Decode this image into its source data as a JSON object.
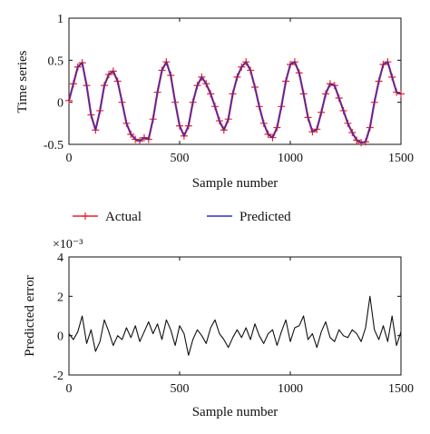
{
  "chart_data": [
    {
      "type": "line",
      "xlabel": "Sample number",
      "ylabel": "Time series",
      "xlim": [
        0,
        1500
      ],
      "ylim": [
        -0.5,
        1
      ],
      "xticks": [
        "0",
        "500",
        "1000",
        "1500"
      ],
      "yticks": [
        "-0.5",
        "0",
        "0.5",
        "1"
      ],
      "grid": false,
      "legend": {
        "placement": "below-plot",
        "entries": [
          "Actual",
          "Predicted"
        ]
      },
      "series": [
        {
          "name": "Actual",
          "color": "#e8222a",
          "marker": "plus",
          "x": [
            0,
            20,
            40,
            60,
            80,
            100,
            120,
            140,
            160,
            180,
            200,
            220,
            240,
            260,
            280,
            300,
            320,
            340,
            360,
            380,
            400,
            420,
            440,
            460,
            480,
            500,
            520,
            540,
            560,
            580,
            600,
            620,
            640,
            660,
            680,
            700,
            720,
            740,
            760,
            780,
            800,
            820,
            840,
            860,
            880,
            900,
            920,
            940,
            960,
            980,
            1000,
            1020,
            1040,
            1060,
            1080,
            1100,
            1120,
            1140,
            1160,
            1180,
            1200,
            1220,
            1240,
            1260,
            1280,
            1300,
            1320,
            1340,
            1360,
            1380,
            1400,
            1420,
            1440,
            1460,
            1480,
            1500
          ],
          "values": [
            0.02,
            0.22,
            0.42,
            0.47,
            0.2,
            -0.15,
            -0.33,
            -0.1,
            0.2,
            0.33,
            0.37,
            0.25,
            0.0,
            -0.25,
            -0.38,
            -0.44,
            -0.46,
            -0.42,
            -0.44,
            -0.2,
            0.12,
            0.38,
            0.48,
            0.32,
            0.0,
            -0.28,
            -0.4,
            -0.28,
            0.0,
            0.2,
            0.3,
            0.22,
            0.1,
            -0.05,
            -0.22,
            -0.33,
            -0.2,
            0.1,
            0.3,
            0.42,
            0.48,
            0.38,
            0.18,
            -0.05,
            -0.25,
            -0.38,
            -0.42,
            -0.3,
            -0.05,
            0.25,
            0.45,
            0.48,
            0.35,
            0.1,
            -0.18,
            -0.35,
            -0.32,
            -0.12,
            0.1,
            0.22,
            0.2,
            0.05,
            -0.1,
            -0.25,
            -0.36,
            -0.45,
            -0.48,
            -0.47,
            -0.3,
            0.0,
            0.25,
            0.45,
            0.48,
            0.3,
            0.12,
            0.1
          ]
        },
        {
          "name": "Predicted",
          "color": "#3030c0",
          "marker": "none",
          "x": [
            0,
            20,
            40,
            60,
            80,
            100,
            120,
            140,
            160,
            180,
            200,
            220,
            240,
            260,
            280,
            300,
            320,
            340,
            360,
            380,
            400,
            420,
            440,
            460,
            480,
            500,
            520,
            540,
            560,
            580,
            600,
            620,
            640,
            660,
            680,
            700,
            720,
            740,
            760,
            780,
            800,
            820,
            840,
            860,
            880,
            900,
            920,
            940,
            960,
            980,
            1000,
            1020,
            1040,
            1060,
            1080,
            1100,
            1120,
            1140,
            1160,
            1180,
            1200,
            1220,
            1240,
            1260,
            1280,
            1300,
            1320,
            1340,
            1360,
            1380,
            1400,
            1420,
            1440,
            1460,
            1480,
            1500
          ],
          "values": [
            0.02,
            0.22,
            0.42,
            0.47,
            0.2,
            -0.15,
            -0.33,
            -0.1,
            0.2,
            0.33,
            0.37,
            0.25,
            0.0,
            -0.25,
            -0.38,
            -0.44,
            -0.46,
            -0.42,
            -0.44,
            -0.2,
            0.12,
            0.38,
            0.48,
            0.32,
            0.0,
            -0.28,
            -0.4,
            -0.28,
            0.0,
            0.2,
            0.3,
            0.22,
            0.1,
            -0.05,
            -0.22,
            -0.33,
            -0.2,
            0.1,
            0.3,
            0.42,
            0.48,
            0.38,
            0.18,
            -0.05,
            -0.25,
            -0.38,
            -0.42,
            -0.3,
            -0.05,
            0.25,
            0.45,
            0.48,
            0.35,
            0.1,
            -0.18,
            -0.35,
            -0.32,
            -0.12,
            0.1,
            0.22,
            0.2,
            0.05,
            -0.1,
            -0.25,
            -0.36,
            -0.45,
            -0.48,
            -0.47,
            -0.3,
            0.0,
            0.25,
            0.45,
            0.48,
            0.3,
            0.12,
            0.1
          ]
        }
      ]
    },
    {
      "type": "line",
      "xlabel": "Sample number",
      "ylabel": "Predicted error",
      "y_exponent_label": "×10⁻³",
      "xlim": [
        0,
        1500
      ],
      "ylim": [
        -2,
        4
      ],
      "xticks": [
        "0",
        "500",
        "1000",
        "1500"
      ],
      "yticks": [
        "-2",
        "0",
        "2",
        "4"
      ],
      "grid": false,
      "series": [
        {
          "color": "#111111",
          "x": [
            0,
            20,
            40,
            60,
            80,
            100,
            120,
            140,
            160,
            180,
            200,
            220,
            240,
            260,
            280,
            300,
            320,
            340,
            360,
            380,
            400,
            420,
            440,
            460,
            480,
            500,
            520,
            540,
            560,
            580,
            600,
            620,
            640,
            660,
            680,
            700,
            720,
            740,
            760,
            780,
            800,
            820,
            840,
            860,
            880,
            900,
            920,
            940,
            960,
            980,
            1000,
            1020,
            1040,
            1060,
            1080,
            1100,
            1120,
            1140,
            1160,
            1180,
            1200,
            1220,
            1240,
            1260,
            1280,
            1300,
            1320,
            1340,
            1360,
            1380,
            1400,
            1420,
            1440,
            1460,
            1480,
            1500
          ],
          "values": [
            0.1,
            -0.2,
            0.2,
            1.0,
            -0.4,
            0.3,
            -0.8,
            -0.3,
            0.8,
            0.2,
            -0.5,
            0.0,
            -0.2,
            0.4,
            -0.1,
            0.5,
            -0.3,
            0.2,
            0.7,
            0.1,
            0.6,
            -0.2,
            0.8,
            0.3,
            -0.5,
            0.5,
            0.1,
            -1.0,
            -0.2,
            0.3,
            0.0,
            -0.4,
            0.4,
            0.8,
            0.1,
            -0.2,
            -0.6,
            -0.1,
            0.3,
            -0.1,
            0.4,
            -0.2,
            0.6,
            0.0,
            -0.4,
            0.1,
            0.3,
            -0.5,
            0.2,
            0.8,
            -0.3,
            0.4,
            0.5,
            1.0,
            -0.2,
            0.1,
            -0.6,
            0.2,
            0.7,
            -0.1,
            -0.3,
            0.3,
            0.0,
            -0.1,
            0.3,
            0.1,
            -0.3,
            0.4,
            2.0,
            0.3,
            -0.2,
            0.5,
            -0.3,
            1.0,
            -0.5,
            0.2
          ]
        }
      ]
    }
  ]
}
